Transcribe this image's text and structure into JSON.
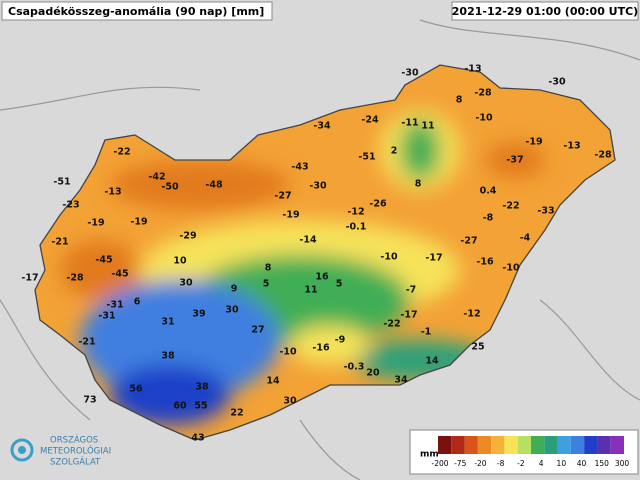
{
  "header": {
    "title": "Csapadékösszeg-anomália (90 nap) [mm]",
    "timestamp": "2021-12-29 01:00 (00:00 UTC)"
  },
  "labels": [
    -30,
    -13,
    8,
    -28,
    -30,
    -34,
    -24,
    -11,
    11,
    -10,
    -22,
    -19,
    -13,
    -28,
    -37,
    2,
    -51,
    -43,
    -51,
    -42,
    -50,
    -48,
    -30,
    -27,
    8,
    0.4,
    -13,
    -23,
    -19,
    -19,
    -19,
    -26,
    -12,
    -22,
    -33,
    -8,
    -0.1,
    -21,
    -29,
    -14,
    -27,
    -4,
    -45,
    10,
    8,
    16,
    -10,
    -17,
    -16,
    -10,
    -17,
    -28,
    -45,
    30,
    9,
    5,
    11,
    5,
    -7,
    -31,
    6,
    39,
    30,
    -12,
    -22,
    -17,
    -31,
    31,
    27,
    -1,
    -9,
    -21,
    -10,
    -16,
    38,
    25,
    14,
    -0.3,
    20,
    34,
    14,
    38,
    56,
    73,
    60,
    55,
    30,
    22,
    43
  ],
  "legend": {
    "unit": "mm",
    "ticks": [
      -200,
      -75,
      -20,
      -8,
      -2,
      4,
      10,
      40,
      150,
      300
    ]
  },
  "logo": {
    "line1": "ORSZÁGOS",
    "line2": "METEOROLÓGIAI",
    "line3": "SZOLGÁLAT"
  }
}
